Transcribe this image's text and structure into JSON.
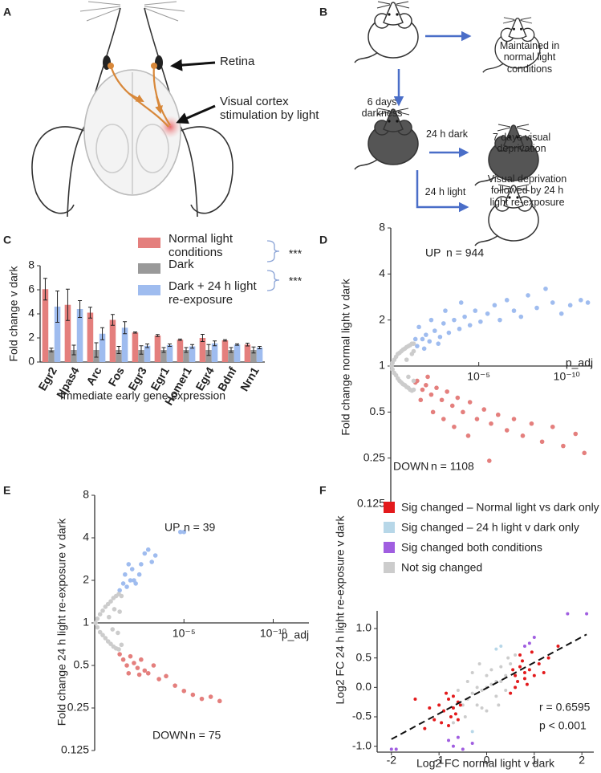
{
  "panel_labels": [
    "A",
    "B",
    "C",
    "D",
    "E",
    "F"
  ],
  "diagram_a": {
    "labels": [
      "Retina",
      "Visual cortex stimulation by light"
    ]
  },
  "diagram_b": {
    "labels": [
      "Maintained in normal light conditions",
      "6 days darkness",
      "24 h dark",
      "7 days visual deprivation",
      "24 h light",
      "Visual deprivation followed by 24 h light re-exposure"
    ]
  },
  "chart_data": [
    {
      "type": "bar",
      "ylabel": "Fold change v dark",
      "xlabel": "Immediate early gene expression",
      "categories": [
        "Egr2",
        "Npas4",
        "Arc",
        "Fos",
        "Egr3",
        "Egr1",
        "Homer1",
        "Egr4",
        "Bdnf",
        "Nrn1"
      ],
      "series": [
        {
          "name": "Normal light conditions",
          "color": "#e47f7d",
          "values": [
            6.05,
            4.75,
            4.1,
            3.5,
            2.45,
            2.2,
            1.85,
            2.0,
            1.8,
            1.45
          ],
          "errors": [
            0.9,
            1.3,
            0.45,
            0.45,
            0.05,
            0.08,
            0.06,
            0.3,
            0.06,
            0.12
          ]
        },
        {
          "name": "Dark",
          "color": "#999999",
          "values": [
            1,
            1,
            1,
            1,
            1,
            1,
            1,
            1,
            1,
            1
          ],
          "errors": [
            0.15,
            0.4,
            0.6,
            0.3,
            0.35,
            0.2,
            0.2,
            0.45,
            0.2,
            0.25
          ]
        },
        {
          "name": "Dark + 24 h light re-exposure",
          "color": "#9fbcef",
          "values": [
            4.6,
            4.4,
            2.35,
            2.85,
            1.35,
            1.4,
            1.3,
            1.55,
            1.45,
            1.2
          ],
          "errors": [
            1.3,
            0.7,
            0.5,
            0.5,
            0.15,
            0.1,
            0.15,
            0.2,
            0.06,
            0.1
          ]
        }
      ],
      "ylim": [
        0,
        8
      ],
      "yticks": [
        0,
        2,
        4,
        6,
        8
      ],
      "annotations": [
        "***",
        "***"
      ],
      "annotation_color": "#4a6cb3"
    },
    {
      "type": "scatter",
      "ylabel": "Fold change normal light v dark",
      "xlabel": "p_adj",
      "yscale": "log",
      "xlim": [
        0,
        11.4
      ],
      "xticks": [
        {
          "value": 5,
          "label": "10⁻⁵"
        },
        {
          "value": 10,
          "label": "10⁻¹⁰"
        }
      ],
      "ylim": [
        0.125,
        8
      ],
      "yticks": [
        0.125,
        0.25,
        0.5,
        1,
        2,
        4,
        8
      ],
      "annotations": [
        {
          "text": "UP",
          "color": "#d63b3b"
        },
        {
          "text": "n = 944"
        },
        {
          "text": "DOWN",
          "color": "#4a6cb3"
        },
        {
          "text": "n = 1108"
        }
      ],
      "series": [
        {
          "color": "#cccccc",
          "x": [
            0.05,
            0.1,
            0.1,
            0.2,
            0.2,
            0.3,
            0.3,
            0.4,
            0.4,
            0.5,
            0.5,
            0.6,
            0.6,
            0.7,
            0.7,
            0.8,
            0.8,
            0.9,
            0.9,
            1.0,
            1.0,
            1.1,
            1.1,
            1.2,
            1.2,
            1.3,
            1.3,
            0.9,
            1.2,
            1.0,
            1.3,
            1.3
          ],
          "values": [
            1.0,
            1.05,
            0.95,
            1.1,
            0.9,
            1.15,
            0.87,
            1.2,
            0.83,
            1.22,
            0.8,
            1.25,
            0.78,
            1.28,
            0.76,
            1.3,
            0.75,
            1.33,
            0.73,
            1.35,
            0.72,
            1.37,
            0.7,
            1.4,
            0.69,
            1.4,
            0.7,
            1.1,
            1.2,
            0.85,
            0.8,
            1.25
          ]
        },
        {
          "color": "#9fbcef",
          "x": [
            1.5,
            1.8,
            2.0,
            2.2,
            2.5,
            2.8,
            3.0,
            3.3,
            3.6,
            3.9,
            4.2,
            4.5,
            4.8,
            5.1,
            5.5,
            5.9,
            6.2,
            6.6,
            7.0,
            7.4,
            7.8,
            8.3,
            8.8,
            9.2,
            9.7,
            10.2,
            10.8,
            11.2,
            1.6,
            2.3,
            3.1,
            4.0,
            1.4,
            1.9,
            2.7
          ],
          "values": [
            1.35,
            1.5,
            1.6,
            1.45,
            1.7,
            1.55,
            1.9,
            1.65,
            2.0,
            1.75,
            2.1,
            1.85,
            2.3,
            1.95,
            2.2,
            2.5,
            2.0,
            2.7,
            2.3,
            2.1,
            2.9,
            2.4,
            3.2,
            2.6,
            2.2,
            2.5,
            2.7,
            2.6,
            1.8,
            2.0,
            2.3,
            2.6,
            1.5,
            1.3,
            1.4
          ]
        },
        {
          "color": "#e47f7d",
          "x": [
            1.5,
            1.8,
            2.0,
            2.3,
            2.6,
            2.9,
            3.2,
            3.5,
            3.8,
            4.1,
            4.5,
            4.9,
            5.3,
            5.7,
            6.1,
            6.6,
            7.0,
            7.5,
            8.0,
            8.6,
            9.2,
            9.8,
            10.5,
            11.0,
            1.7,
            2.4,
            3.0,
            3.6,
            4.4,
            5.6,
            1.4,
            2.1
          ],
          "values": [
            0.8,
            0.7,
            0.75,
            0.65,
            0.72,
            0.6,
            0.68,
            0.55,
            0.62,
            0.5,
            0.58,
            0.45,
            0.52,
            0.42,
            0.48,
            0.38,
            0.45,
            0.35,
            0.42,
            0.32,
            0.4,
            0.3,
            0.36,
            0.27,
            0.6,
            0.5,
            0.45,
            0.4,
            0.35,
            0.24,
            0.78,
            0.85
          ]
        }
      ]
    },
    {
      "type": "scatter",
      "ylabel": "Fold change 24 h light re-exposure v dark",
      "xlabel": "p_adj",
      "yscale": "log",
      "xlim": [
        0,
        12
      ],
      "xticks": [
        {
          "value": 5,
          "label": "10⁻⁵"
        },
        {
          "value": 10,
          "label": "10⁻¹⁰"
        }
      ],
      "ylim": [
        0.125,
        8
      ],
      "yticks": [
        0.125,
        0.25,
        0.5,
        1,
        2,
        4,
        8
      ],
      "annotations": [
        {
          "text": "UP",
          "color": "#d63b3b"
        },
        {
          "text": "n = 39"
        },
        {
          "text": "DOWN",
          "color": "#4a6cb3"
        },
        {
          "text": "n = 75"
        }
      ],
      "series": [
        {
          "color": "#cccccc",
          "x": [
            0.05,
            0.15,
            0.15,
            0.3,
            0.3,
            0.45,
            0.45,
            0.6,
            0.6,
            0.75,
            0.75,
            0.9,
            0.9,
            1.05,
            1.05,
            1.2,
            1.2,
            1.35,
            1.35,
            1.5,
            1.5,
            0.8,
            1.1,
            1.3,
            1.4,
            1.0
          ],
          "values": [
            1.0,
            1.07,
            0.93,
            1.15,
            0.86,
            1.22,
            0.82,
            1.3,
            0.78,
            1.36,
            0.74,
            1.42,
            0.71,
            1.5,
            0.68,
            1.55,
            0.66,
            1.6,
            0.65,
            1.55,
            0.7,
            1.1,
            1.25,
            0.85,
            1.2,
            0.9
          ]
        },
        {
          "color": "#9fbcef",
          "x": [
            1.4,
            1.6,
            1.7,
            1.8,
            2.0,
            2.1,
            2.3,
            2.5,
            2.6,
            2.8,
            3.0,
            3.2,
            3.4,
            1.9,
            2.2,
            4.8,
            5.0
          ],
          "values": [
            1.7,
            1.9,
            2.2,
            1.8,
            2.0,
            2.4,
            1.9,
            2.2,
            2.6,
            3.1,
            3.3,
            2.7,
            3.0,
            2.6,
            2.0,
            4.4,
            4.4
          ]
        },
        {
          "color": "#e47f7d",
          "x": [
            1.4,
            1.6,
            1.8,
            2.0,
            2.2,
            2.4,
            2.6,
            2.8,
            3.0,
            3.3,
            3.6,
            4.0,
            4.5,
            5.0,
            5.5,
            6.0,
            6.5,
            7.0,
            1.9,
            2.5
          ],
          "values": [
            0.6,
            0.55,
            0.5,
            0.58,
            0.52,
            0.48,
            0.55,
            0.46,
            0.44,
            0.5,
            0.4,
            0.42,
            0.36,
            0.33,
            0.31,
            0.29,
            0.3,
            0.28,
            0.44,
            0.43
          ]
        }
      ]
    },
    {
      "type": "scatter",
      "ylabel": "Log2 FC 24 h light re-exposure v dark",
      "xlabel": "Log2 FC normal light v dark",
      "xlim": [
        -2.3,
        2.25
      ],
      "xticks": [
        -2,
        -1,
        0,
        1,
        2
      ],
      "ylim": [
        -1.1,
        1.3
      ],
      "yticks": [
        {
          "value": -1,
          "label": "-1.0"
        },
        -0.5,
        {
          "value": 0,
          "label": "0.0"
        },
        0.5,
        {
          "value": 1,
          "label": "1.0"
        }
      ],
      "series": [
        {
          "name": "Sig changed –  Normal light vs dark only",
          "color": "#e31a1c",
          "x": [
            -0.9,
            -0.8,
            -0.7,
            -0.6,
            -0.75,
            -1.0,
            -0.85,
            -0.65,
            -0.55,
            -1.1,
            -0.95,
            -0.7,
            -1.2,
            -0.6,
            -1.3,
            -0.8,
            -1.5,
            0.6,
            0.7,
            0.8,
            0.65,
            0.9,
            0.75,
            1.0,
            0.55,
            0.85,
            1.1,
            0.7,
            1.2,
            0.95,
            0.6,
            1.3,
            0.8,
            1.5,
            0.5
          ],
          "values": [
            -0.4,
            -0.2,
            -0.35,
            -0.25,
            -0.5,
            -0.3,
            -0.1,
            -0.45,
            -0.3,
            -0.55,
            -0.6,
            -0.15,
            -0.35,
            -0.55,
            -0.7,
            -0.65,
            -0.2,
            0.2,
            0.35,
            0.15,
            0.1,
            0.3,
            0.45,
            0.2,
            0.3,
            0.05,
            0.4,
            0.55,
            0.25,
            0.6,
            0.0,
            0.5,
            0.25,
            0.7,
            -0.1
          ]
        },
        {
          "name": "Sig changed – 24 h light v dark only",
          "color": "#b7d7e8",
          "x": [
            0.3,
            -0.3,
            0.2
          ],
          "values": [
            0.7,
            -0.75,
            0.65
          ]
        },
        {
          "name": "Sig changed both conditions",
          "color": "#a05ee0",
          "x": [
            -0.7,
            -0.6,
            -0.8,
            -0.5,
            -2.0,
            -1.9,
            0.9,
            1.0,
            0.8,
            1.7,
            2.1,
            -0.3
          ],
          "values": [
            -1.0,
            -0.85,
            -0.9,
            -1.05,
            -1.05,
            -1.05,
            0.75,
            0.85,
            0.7,
            1.25,
            1.25,
            -0.95
          ]
        },
        {
          "name": "Not sig changed",
          "color": "#cccccc",
          "x": [
            -0.4,
            -0.3,
            -0.2,
            -0.1,
            0.0,
            0.1,
            0.2,
            0.3,
            0.4,
            -0.5,
            -0.2,
            0.0,
            0.2,
            -0.4,
            0.4,
            0.1,
            -0.1,
            0.5,
            -0.6,
            0.3,
            -0.3,
            0.0,
            0.6,
            -0.7,
            0.25,
            -0.45,
            0.45,
            -0.15
          ],
          "values": [
            -0.2,
            -0.1,
            0.0,
            -0.05,
            0.0,
            0.05,
            0.1,
            0.1,
            0.2,
            -0.3,
            -0.3,
            0.2,
            -0.15,
            0.1,
            -0.05,
            0.3,
            -0.35,
            0.4,
            -0.05,
            0.35,
            0.25,
            -0.4,
            0.55,
            -0.6,
            -0.3,
            -0.5,
            0.5,
            0.4
          ]
        }
      ],
      "fit_line": {
        "x": [
          -2,
          2.1
        ],
        "y": [
          -0.88,
          0.9
        ]
      },
      "stats": [
        "r = 0.6595",
        "p < 0.001"
      ]
    }
  ]
}
